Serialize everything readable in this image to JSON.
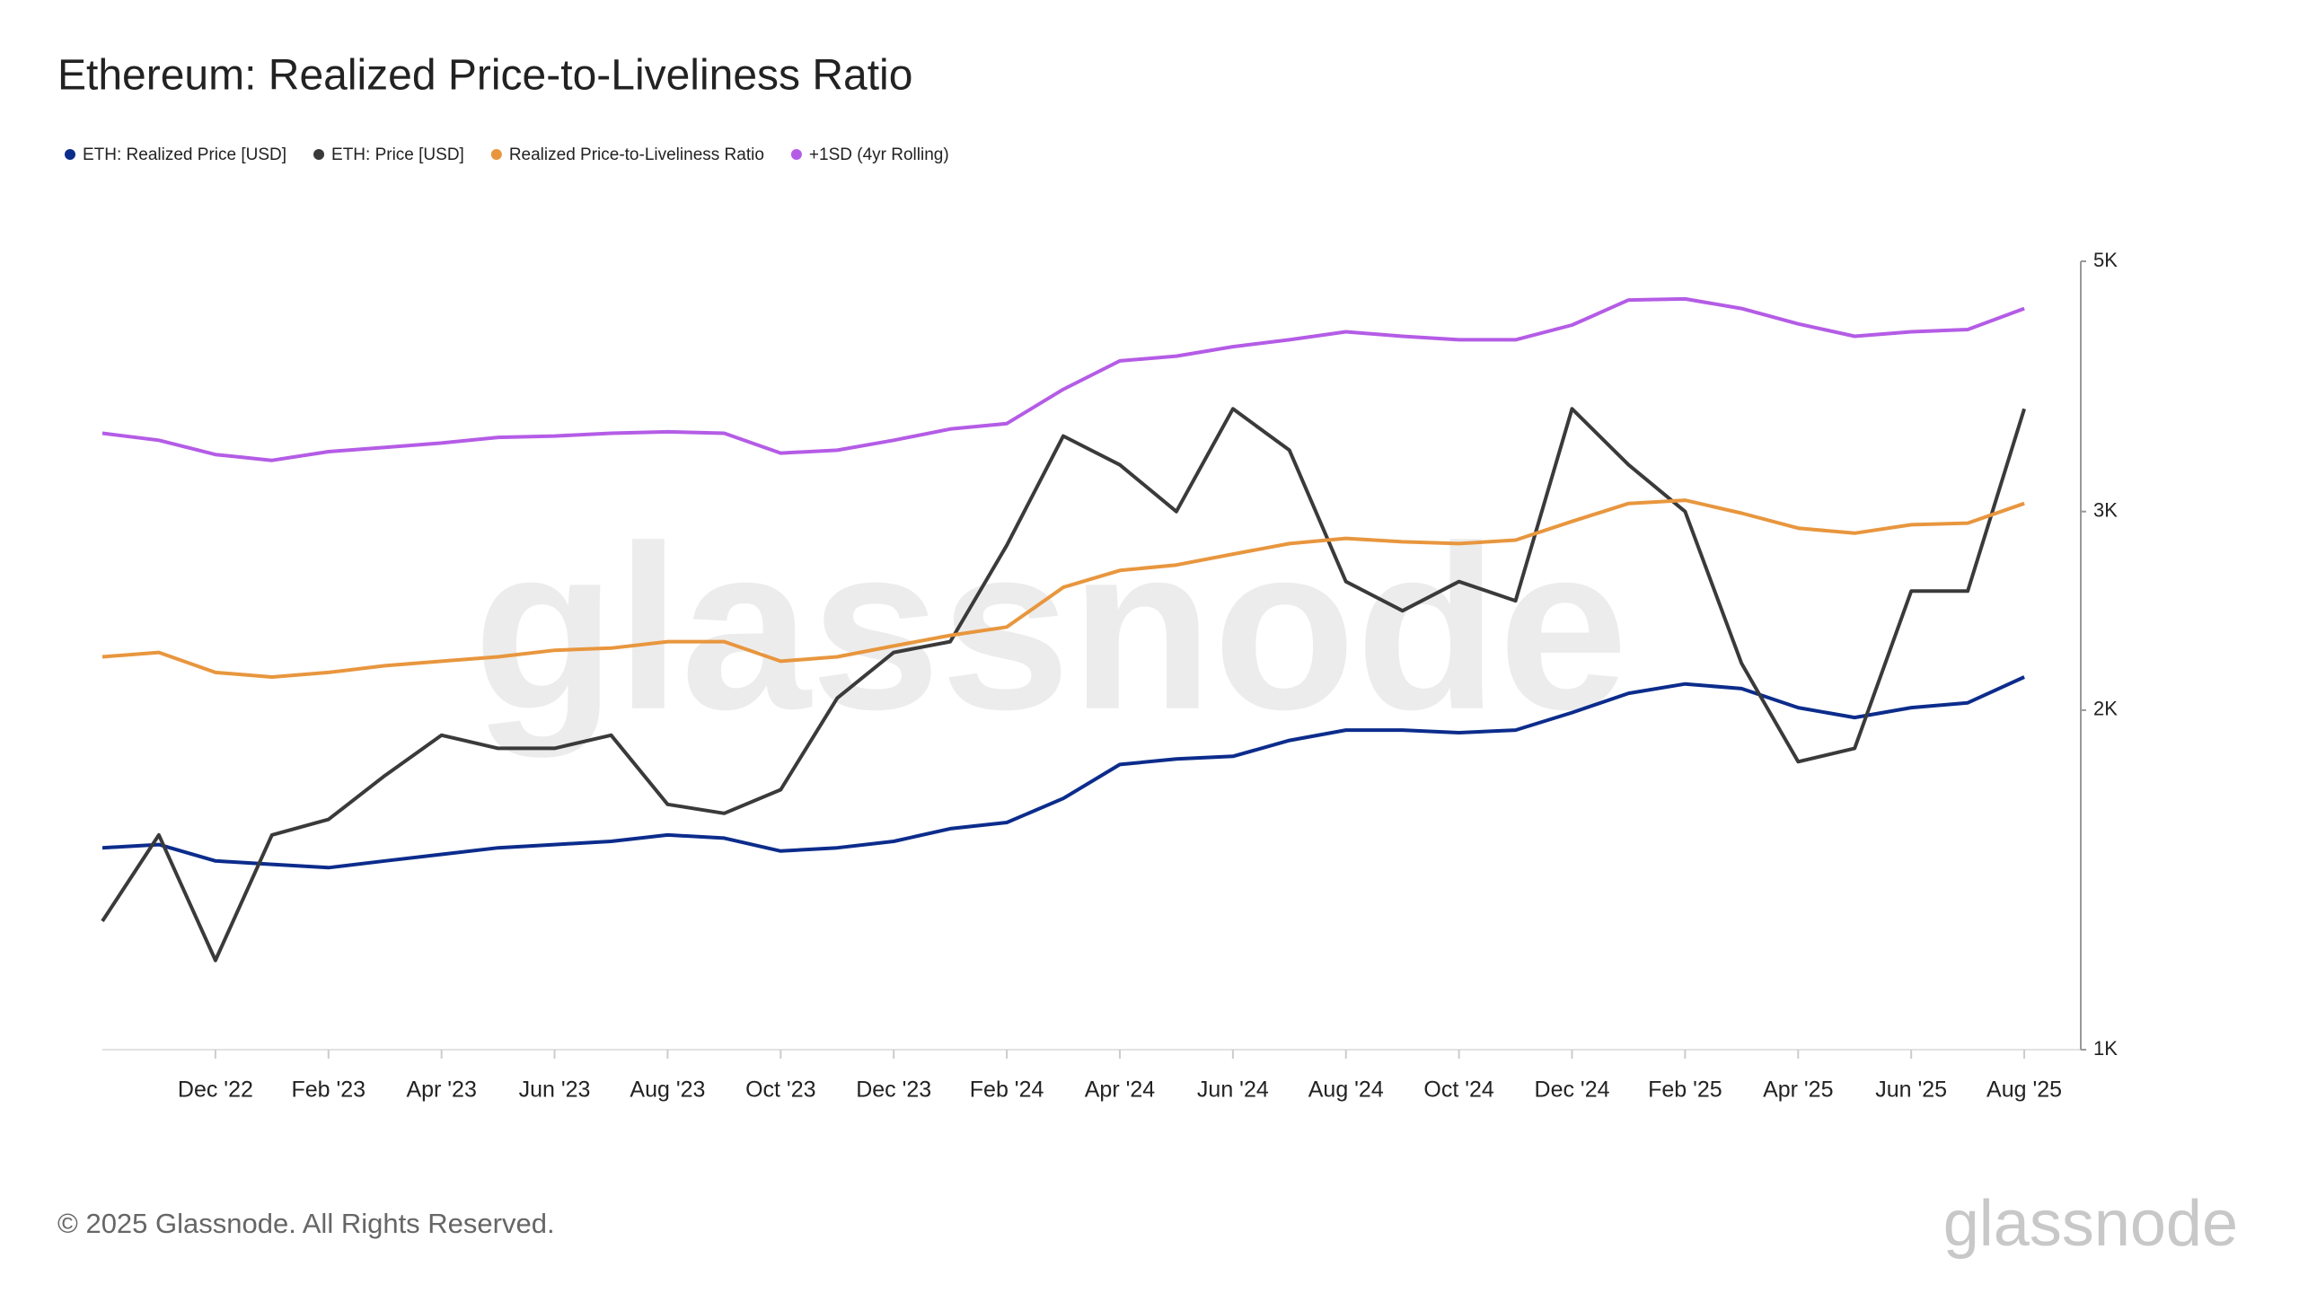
{
  "chart_data": {
    "type": "line",
    "title": "Ethereum: Realized Price-to-Liveliness Ratio",
    "footer": "© 2025 Glassnode. All Rights Reserved.",
    "watermark": "glassnode",
    "log_y": true,
    "x": [
      "2022-10",
      "2022-11",
      "2022-12",
      "2023-01",
      "2023-02",
      "2023-03",
      "2023-04",
      "2023-05",
      "2023-06",
      "2023-07",
      "2023-08",
      "2023-09",
      "2023-10",
      "2023-11",
      "2023-12",
      "2024-01",
      "2024-02",
      "2024-03",
      "2024-04",
      "2024-05",
      "2024-06",
      "2024-07",
      "2024-08",
      "2024-09",
      "2024-10",
      "2024-11",
      "2024-12",
      "2025-01",
      "2025-02",
      "2025-03",
      "2025-04",
      "2025-05",
      "2025-06",
      "2025-07",
      "2025-08"
    ],
    "xlim": [
      "2022-10",
      "2025-09"
    ],
    "xticks": [
      {
        "value": "2022-12",
        "label": "Dec '22"
      },
      {
        "value": "2023-02",
        "label": "Feb '23"
      },
      {
        "value": "2023-04",
        "label": "Apr '23"
      },
      {
        "value": "2023-06",
        "label": "Jun '23"
      },
      {
        "value": "2023-08",
        "label": "Aug '23"
      },
      {
        "value": "2023-10",
        "label": "Oct '23"
      },
      {
        "value": "2023-12",
        "label": "Dec '23"
      },
      {
        "value": "2024-02",
        "label": "Feb '24"
      },
      {
        "value": "2024-04",
        "label": "Apr '24"
      },
      {
        "value": "2024-06",
        "label": "Jun '24"
      },
      {
        "value": "2024-08",
        "label": "Aug '24"
      },
      {
        "value": "2024-10",
        "label": "Oct '24"
      },
      {
        "value": "2024-12",
        "label": "Dec '24"
      },
      {
        "value": "2025-02",
        "label": "Feb '25"
      },
      {
        "value": "2025-04",
        "label": "Apr '25"
      },
      {
        "value": "2025-06",
        "label": "Jun '25"
      },
      {
        "value": "2025-08",
        "label": "Aug '25"
      }
    ],
    "ylim": [
      1000,
      5000
    ],
    "yticks": [
      {
        "value": 1000,
        "label": "1K"
      },
      {
        "value": 2000,
        "label": "2K"
      },
      {
        "value": 3000,
        "label": "3K"
      },
      {
        "value": 5000,
        "label": "5K"
      }
    ],
    "series": [
      {
        "name": "ETH: Realized Price [USD]",
        "color": "#0c2c8c",
        "values": [
          1510,
          1520,
          1470,
          1460,
          1450,
          1470,
          1490,
          1510,
          1520,
          1530,
          1550,
          1540,
          1500,
          1510,
          1530,
          1570,
          1590,
          1670,
          1790,
          1810,
          1820,
          1880,
          1920,
          1920,
          1910,
          1920,
          1990,
          2070,
          2110,
          2090,
          2010,
          1970,
          2010,
          2030,
          2140
        ]
      },
      {
        "name": "ETH: Price [USD]",
        "color": "#3a3a3a",
        "values": [
          1300,
          1550,
          1200,
          1550,
          1600,
          1750,
          1900,
          1850,
          1850,
          1900,
          1650,
          1620,
          1700,
          2050,
          2250,
          2300,
          2800,
          3500,
          3300,
          3000,
          3700,
          3400,
          2600,
          2450,
          2600,
          2500,
          3700,
          3300,
          3000,
          2200,
          1800,
          1850,
          2550,
          2550,
          3700
        ]
      },
      {
        "name": "Realized Price-to-Liveliness Ratio",
        "color": "#e8963e",
        "values": [
          2230,
          2250,
          2160,
          2140,
          2160,
          2190,
          2210,
          2230,
          2260,
          2270,
          2300,
          2300,
          2210,
          2230,
          2280,
          2330,
          2370,
          2570,
          2660,
          2690,
          2750,
          2810,
          2840,
          2820,
          2810,
          2830,
          2940,
          3050,
          3070,
          2990,
          2900,
          2870,
          2920,
          2930,
          3050
        ]
      },
      {
        "name": "+1SD (4yr Rolling)",
        "color": "#b45ce6",
        "values": [
          3520,
          3470,
          3370,
          3330,
          3390,
          3420,
          3450,
          3490,
          3500,
          3520,
          3530,
          3520,
          3380,
          3400,
          3470,
          3550,
          3590,
          3850,
          4080,
          4120,
          4200,
          4260,
          4330,
          4290,
          4260,
          4260,
          4390,
          4620,
          4630,
          4540,
          4400,
          4290,
          4330,
          4350,
          4540
        ]
      }
    ]
  }
}
